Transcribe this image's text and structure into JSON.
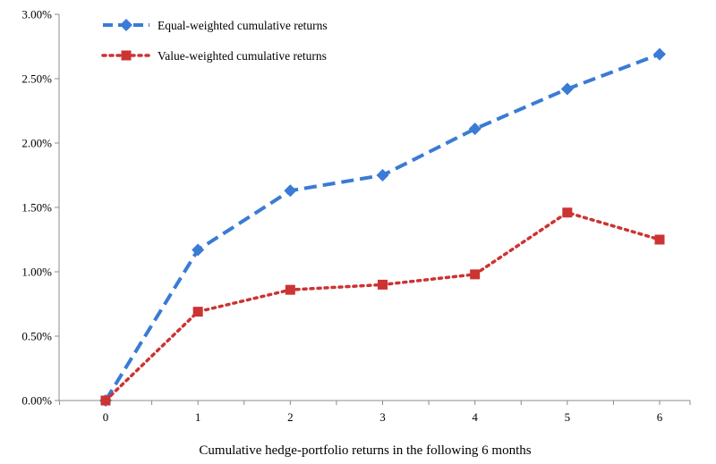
{
  "chart_data": {
    "type": "line",
    "title": "",
    "xlabel": "Cumulative hedge-portfolio returns in the following 6 months",
    "ylabel": "",
    "x": [
      0,
      1,
      2,
      3,
      4,
      5,
      6
    ],
    "xlim": [
      0,
      6
    ],
    "ylim": [
      0,
      3.0
    ],
    "yticks": [
      0,
      0.5,
      1.0,
      1.5,
      2.0,
      2.5,
      3.0
    ],
    "ytick_labels": [
      "0.00%",
      "0.50%",
      "1.00%",
      "1.50%",
      "2.00%",
      "2.50%",
      "3.00%"
    ],
    "xtick_labels": [
      "0",
      "1",
      "2",
      "3",
      "4",
      "5",
      "6"
    ],
    "grid": false,
    "legend_position": "top-left",
    "series": [
      {
        "name": "Equal-weighted cumulative returns",
        "values": [
          0.0,
          1.17,
          1.63,
          1.75,
          2.11,
          2.42,
          2.69
        ],
        "color": "#3a7bd5",
        "line_style": "dashed",
        "marker": "diamond"
      },
      {
        "name": "Value-weighted cumulative returns",
        "values": [
          0.0,
          0.69,
          0.86,
          0.9,
          0.98,
          1.46,
          1.25
        ],
        "color": "#cc3333",
        "line_style": "dotted",
        "marker": "square"
      }
    ]
  }
}
